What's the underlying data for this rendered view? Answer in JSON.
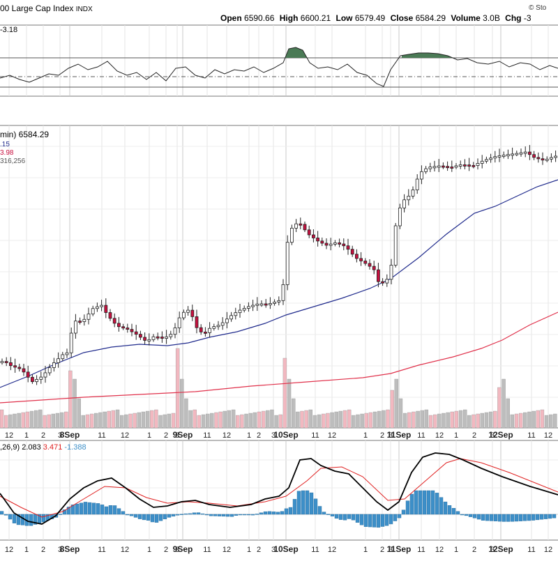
{
  "header": {
    "title_fragment": "00 Large Cap Index",
    "exchange": "INDX",
    "brand_fragment": "© Sto",
    "open_label": "Open",
    "open_value": "6590.66",
    "high_label": "High",
    "high_value": "6600.21",
    "low_label": "Low",
    "low_value": "6579.49",
    "close_label": "Close",
    "close_value": "6584.29",
    "volume_label": "Volume",
    "volume_value": "3.0B",
    "chg_label": "Chg",
    "chg_value": "-3"
  },
  "panels": {
    "top_indicator_value": "-3.18",
    "price_legend_main": "min) 6584.29",
    "price_legend_line2": ".15",
    "price_legend_line3": "3.98",
    "price_legend_line4": "316,256",
    "macd_legend_params": ",26,9)",
    "macd_legend_macd": "2.083",
    "macd_legend_signal": "3.471",
    "macd_legend_hist": "-1.388"
  },
  "colors": {
    "up_candle": "#ffffff",
    "down_candle": "#c8103f",
    "ma_short": "#1f2a8c",
    "ma_long": "#e0304a",
    "volume_up": "#bdbdbd",
    "volume_down": "#f2b8c0",
    "macd_line": "#000000",
    "signal_line": "#e02020",
    "histogram": "#3d8fc8",
    "rsi_fill": "#4a7a55"
  },
  "chart_data": {
    "type": "candlestick",
    "days": [
      "8Sep",
      "9Sep",
      "10Sep",
      "11Sep",
      "12Sep"
    ],
    "hour_ticks": [
      "12",
      "1",
      "2",
      "3",
      "8Sep",
      "11",
      "12",
      "1",
      "2",
      "3",
      "9Sep",
      "11",
      "12",
      "1",
      "2",
      "3",
      "10Sep",
      "11",
      "12",
      "1",
      "2",
      "3",
      "11Sep",
      "11",
      "12",
      "1",
      "2",
      "3",
      "12Sep",
      "11",
      "12"
    ],
    "close_last": 6584.29
  }
}
